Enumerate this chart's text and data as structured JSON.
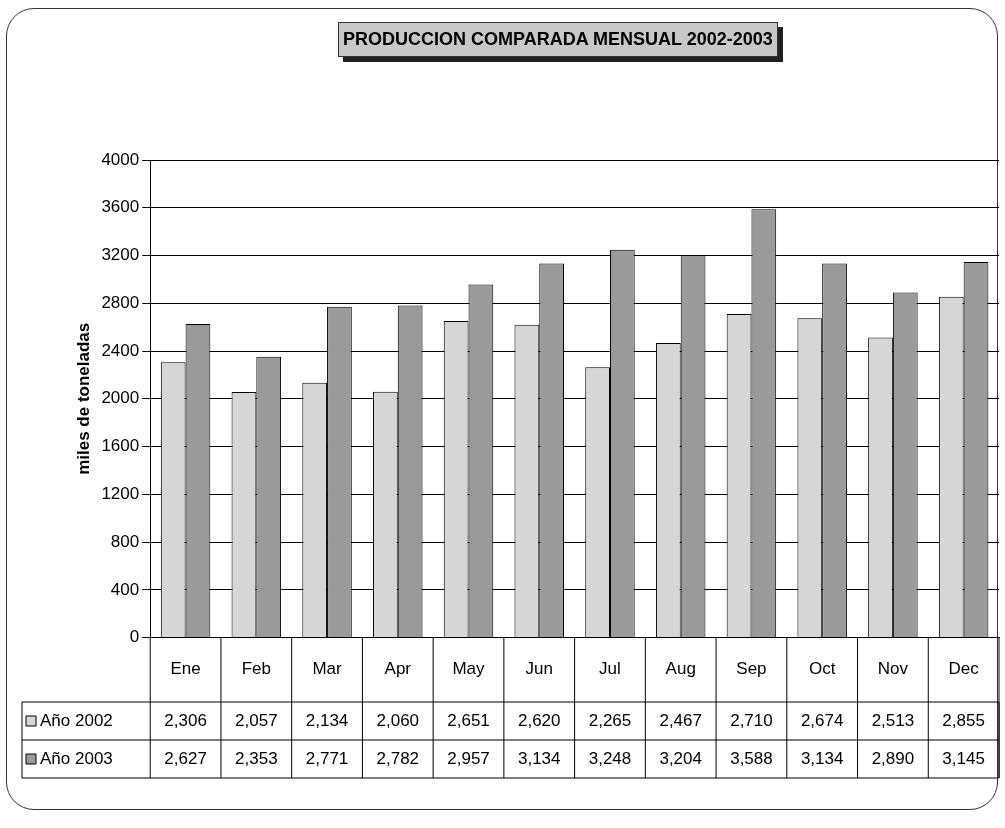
{
  "chart_data": {
    "type": "bar",
    "title": "PRODUCCION COMPARADA MENSUAL 2002-2003",
    "ylabel": "miles de toneladas",
    "categories": [
      "Ene",
      "Feb",
      "Mar",
      "Apr",
      "May",
      "Jun",
      "Jul",
      "Aug",
      "Sep",
      "Oct",
      "Nov",
      "Dec"
    ],
    "series": [
      {
        "name": "Año 2002",
        "color": "#d6d6d6",
        "values": [
          2306,
          2057,
          2134,
          2060,
          2651,
          2620,
          2265,
          2467,
          2710,
          2674,
          2513,
          2855
        ],
        "value_labels": [
          "2,306",
          "2,057",
          "2,134",
          "2,060",
          "2,651",
          "2,620",
          "2,265",
          "2,467",
          "2,710",
          "2,674",
          "2,513",
          "2,855"
        ]
      },
      {
        "name": "Año 2003",
        "color": "#9a9a9a",
        "values": [
          2627,
          2353,
          2771,
          2782,
          2957,
          3134,
          3248,
          3204,
          3588,
          3134,
          2890,
          3145
        ],
        "value_labels": [
          "2,627",
          "2,353",
          "2,771",
          "2,782",
          "2,957",
          "3,134",
          "3,248",
          "3,204",
          "3,588",
          "3,134",
          "2,890",
          "3,145"
        ]
      }
    ],
    "ylim": [
      0,
      4000
    ],
    "yticks": [
      0,
      400,
      800,
      1200,
      1600,
      2000,
      2400,
      2800,
      3200,
      3600,
      4000
    ],
    "grid": "y",
    "legend": "bottom"
  }
}
